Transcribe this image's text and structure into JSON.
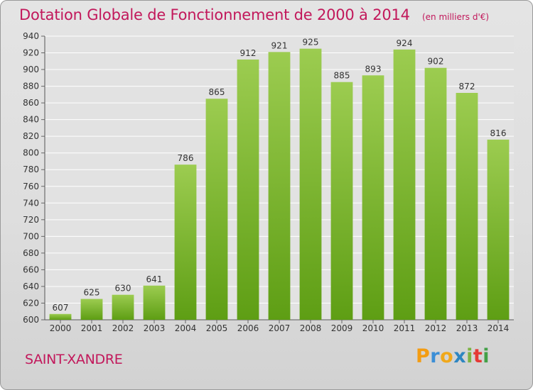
{
  "title": "Dotation Globale de Fonctionnement de 2000 à 2014",
  "unit_note": "(en milliers d'€)",
  "commune": "SAINT-XANDRE",
  "logo": {
    "text": "Proxiti",
    "letters": [
      "P",
      "r",
      "o",
      "x",
      "i",
      "t",
      "i"
    ]
  },
  "colors": {
    "title": "#c2185b",
    "bar_top": "#9ccc50",
    "bar_bottom": "#5e9e14",
    "background": "#e0e0e0"
  },
  "chart_data": {
    "type": "bar",
    "title": "Dotation Globale de Fonctionnement de 2000 à 2014",
    "xlabel": "",
    "ylabel": "",
    "categories": [
      "2000",
      "2001",
      "2002",
      "2003",
      "2004",
      "2005",
      "2006",
      "2007",
      "2008",
      "2009",
      "2010",
      "2011",
      "2012",
      "2013",
      "2014"
    ],
    "values": [
      607,
      625,
      630,
      641,
      786,
      865,
      912,
      921,
      925,
      885,
      893,
      924,
      902,
      872,
      816
    ],
    "ylim": [
      600,
      940
    ],
    "yticks": [
      600,
      620,
      640,
      660,
      680,
      700,
      720,
      740,
      760,
      780,
      800,
      820,
      840,
      860,
      880,
      900,
      920,
      940
    ],
    "grid": true,
    "data_labels": true
  }
}
